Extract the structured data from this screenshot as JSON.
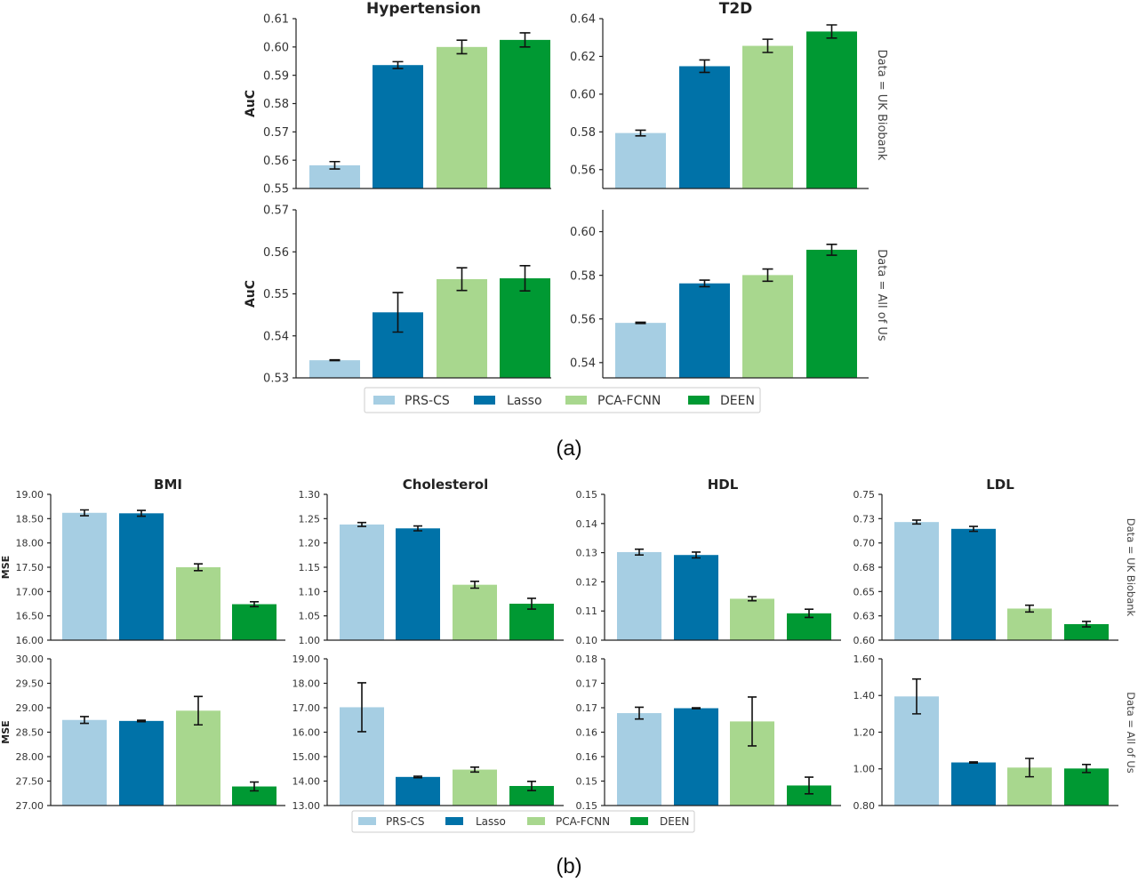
{
  "legend": {
    "labels": [
      "PRS-CS",
      "Lasso",
      "PCA-FCNN",
      "DEEN"
    ],
    "colors": [
      "#a6cee3",
      "#0072a8",
      "#a8d78e",
      "#009933"
    ]
  },
  "captions": {
    "a": "(a)",
    "b": "(b)"
  },
  "row_labels": {
    "uk": "Data = UK Biobank",
    "aou": "Data = All of Us"
  },
  "chart_data": [
    {
      "id": "a-hyp-uk",
      "type": "bar",
      "title": "Hypertension",
      "ylabel": "AuC",
      "row": "uk",
      "categories": [
        "PRS-CS",
        "Lasso",
        "PCA-FCNN",
        "DEEN"
      ],
      "values": [
        0.5582,
        0.5936,
        0.6,
        0.6025
      ],
      "errors": [
        0.0013,
        0.0012,
        0.0024,
        0.0025
      ],
      "ylim": [
        0.55,
        0.61
      ],
      "yticks": [
        0.55,
        0.56,
        0.57,
        0.58,
        0.59,
        0.6,
        0.61
      ],
      "ytick_labels": [
        "0.55",
        "0.56",
        "0.57",
        "0.58",
        "0.59",
        "0.60",
        "0.61"
      ]
    },
    {
      "id": "a-t2d-uk",
      "type": "bar",
      "title": "T2D",
      "ylabel": "",
      "row": "uk",
      "categories": [
        "PRS-CS",
        "Lasso",
        "PCA-FCNN",
        "DEEN"
      ],
      "values": [
        0.5794,
        0.6148,
        0.6256,
        0.6332
      ],
      "errors": [
        0.0015,
        0.0033,
        0.0035,
        0.0035
      ],
      "ylim": [
        0.55,
        0.64
      ],
      "yticks": [
        0.56,
        0.58,
        0.6,
        0.62,
        0.64
      ],
      "ytick_labels": [
        "0.56",
        "0.58",
        "0.60",
        "0.62",
        "0.64"
      ]
    },
    {
      "id": "a-hyp-aou",
      "type": "bar",
      "title": "",
      "ylabel": "AuC",
      "row": "aou",
      "categories": [
        "PRS-CS",
        "Lasso",
        "PCA-FCNN",
        "DEEN"
      ],
      "values": [
        0.5342,
        0.5456,
        0.5535,
        0.5537
      ],
      "errors": [
        0.0001,
        0.0047,
        0.0027,
        0.003
      ],
      "ylim": [
        0.53,
        0.57
      ],
      "yticks": [
        0.53,
        0.54,
        0.55,
        0.56,
        0.57
      ],
      "ytick_labels": [
        "0.53",
        "0.54",
        "0.55",
        "0.56",
        "0.57"
      ]
    },
    {
      "id": "a-t2d-aou",
      "type": "bar",
      "title": "",
      "ylabel": "",
      "row": "aou",
      "categories": [
        "PRS-CS",
        "Lasso",
        "PCA-FCNN",
        "DEEN"
      ],
      "values": [
        0.5582,
        0.5763,
        0.5801,
        0.5917
      ],
      "errors": [
        0.0003,
        0.0015,
        0.0028,
        0.0025
      ],
      "ylim": [
        0.533,
        0.61
      ],
      "yticks": [
        0.54,
        0.56,
        0.58,
        0.6
      ],
      "ytick_labels": [
        "0.54",
        "0.56",
        "0.58",
        "0.60"
      ]
    },
    {
      "id": "b-bmi-uk",
      "type": "bar",
      "title": "BMI",
      "ylabel": "MSE",
      "row": "uk",
      "categories": [
        "PRS-CS",
        "Lasso",
        "PCA-FCNN",
        "DEEN"
      ],
      "values": [
        18.62,
        18.61,
        17.5,
        16.74
      ],
      "errors": [
        0.06,
        0.06,
        0.07,
        0.05
      ],
      "ylim": [
        16.0,
        19.0
      ],
      "yticks": [
        16.0,
        16.5,
        17.0,
        17.5,
        18.0,
        18.5,
        19.0
      ],
      "ytick_labels": [
        "16.00",
        "16.50",
        "17.00",
        "17.50",
        "18.00",
        "18.50",
        "19.00"
      ]
    },
    {
      "id": "b-chol-uk",
      "type": "bar",
      "title": "Cholesterol",
      "ylabel": "",
      "row": "uk",
      "categories": [
        "PRS-CS",
        "Lasso",
        "PCA-FCNN",
        "DEEN"
      ],
      "values": [
        1.238,
        1.23,
        1.114,
        1.075
      ],
      "errors": [
        0.004,
        0.005,
        0.007,
        0.011
      ],
      "ylim": [
        1.0,
        1.3
      ],
      "yticks": [
        1.0,
        1.05,
        1.1,
        1.15,
        1.2,
        1.25,
        1.3
      ],
      "ytick_labels": [
        "1.00",
        "1.05",
        "1.10",
        "1.15",
        "1.20",
        "1.25",
        "1.30"
      ]
    },
    {
      "id": "b-hdl-uk",
      "type": "bar",
      "title": "HDL",
      "ylabel": "",
      "row": "uk",
      "categories": [
        "PRS-CS",
        "Lasso",
        "PCA-FCNN",
        "DEEN"
      ],
      "values": [
        0.1302,
        0.1292,
        0.1142,
        0.1092
      ],
      "errors": [
        0.001,
        0.001,
        0.0007,
        0.0014
      ],
      "ylim": [
        0.1,
        0.15
      ],
      "yticks": [
        0.1,
        0.11,
        0.12,
        0.13,
        0.14,
        0.15
      ],
      "ytick_labels": [
        "0.10",
        "0.11",
        "0.12",
        "0.13",
        "0.14",
        "0.15"
      ]
    },
    {
      "id": "b-ldl-uk",
      "type": "bar",
      "title": "LDL",
      "ylabel": "",
      "row": "uk",
      "categories": [
        "PRS-CS",
        "Lasso",
        "PCA-FCNN",
        "DEEN"
      ],
      "values": [
        0.7215,
        0.7145,
        0.6325,
        0.6165
      ],
      "errors": [
        0.002,
        0.0025,
        0.0035,
        0.0028
      ],
      "ylim": [
        0.6,
        0.75
      ],
      "yticks": [
        0.6,
        0.625,
        0.65,
        0.675,
        0.7,
        0.725,
        0.75
      ],
      "ytick_labels": [
        "0.60",
        "0.63",
        "0.65",
        "0.68",
        "0.70",
        "0.73",
        "0.75"
      ]
    },
    {
      "id": "b-bmi-aou",
      "type": "bar",
      "title": "",
      "ylabel": "MSE",
      "row": "aou",
      "categories": [
        "PRS-CS",
        "Lasso",
        "PCA-FCNN",
        "DEEN"
      ],
      "values": [
        28.75,
        28.73,
        28.94,
        27.39
      ],
      "errors": [
        0.07,
        0.015,
        0.29,
        0.09
      ],
      "ylim": [
        27.0,
        30.0
      ],
      "yticks": [
        27.0,
        27.5,
        28.0,
        28.5,
        29.0,
        29.5,
        30.0
      ],
      "ytick_labels": [
        "27.00",
        "27.50",
        "28.00",
        "28.50",
        "29.00",
        "29.50",
        "30.00"
      ]
    },
    {
      "id": "b-chol-aou",
      "type": "bar",
      "title": "",
      "ylabel": "",
      "row": "aou",
      "categories": [
        "PRS-CS",
        "Lasso",
        "PCA-FCNN",
        "DEEN"
      ],
      "values": [
        17.02,
        14.17,
        14.47,
        13.8
      ],
      "errors": [
        1.0,
        0.03,
        0.1,
        0.19
      ],
      "ylim": [
        13.0,
        19.0
      ],
      "yticks": [
        13.0,
        14.0,
        15.0,
        16.0,
        17.0,
        18.0,
        19.0
      ],
      "ytick_labels": [
        "13.00",
        "14.00",
        "15.00",
        "16.00",
        "17.00",
        "18.00",
        "19.00"
      ]
    },
    {
      "id": "b-hdl-aou",
      "type": "bar",
      "title": "",
      "ylabel": "",
      "row": "aou",
      "categories": [
        "PRS-CS",
        "Lasso",
        "PCA-FCNN",
        "DEEN"
      ],
      "values": [
        0.1689,
        0.1699,
        0.1672,
        0.1541
      ],
      "errors": [
        0.0012,
        0.0001,
        0.005,
        0.0017
      ],
      "ylim": [
        0.15,
        0.18
      ],
      "yticks": [
        0.15,
        0.155,
        0.16,
        0.165,
        0.17,
        0.175,
        0.18
      ],
      "ytick_labels": [
        "0.15",
        "0.15",
        "0.16",
        "0.16",
        "0.17",
        "0.17",
        "0.18"
      ]
    },
    {
      "id": "b-ldl-aou",
      "type": "bar",
      "title": "",
      "ylabel": "",
      "row": "aou",
      "categories": [
        "PRS-CS",
        "Lasso",
        "PCA-FCNN",
        "DEEN"
      ],
      "values": [
        1.395,
        1.035,
        1.007,
        1.002
      ],
      "errors": [
        0.095,
        0.003,
        0.05,
        0.022
      ],
      "ylim": [
        0.8,
        1.6
      ],
      "yticks": [
        0.8,
        1.0,
        1.2,
        1.4,
        1.6
      ],
      "ytick_labels": [
        "0.80",
        "1.00",
        "1.20",
        "1.40",
        "1.60"
      ]
    }
  ]
}
